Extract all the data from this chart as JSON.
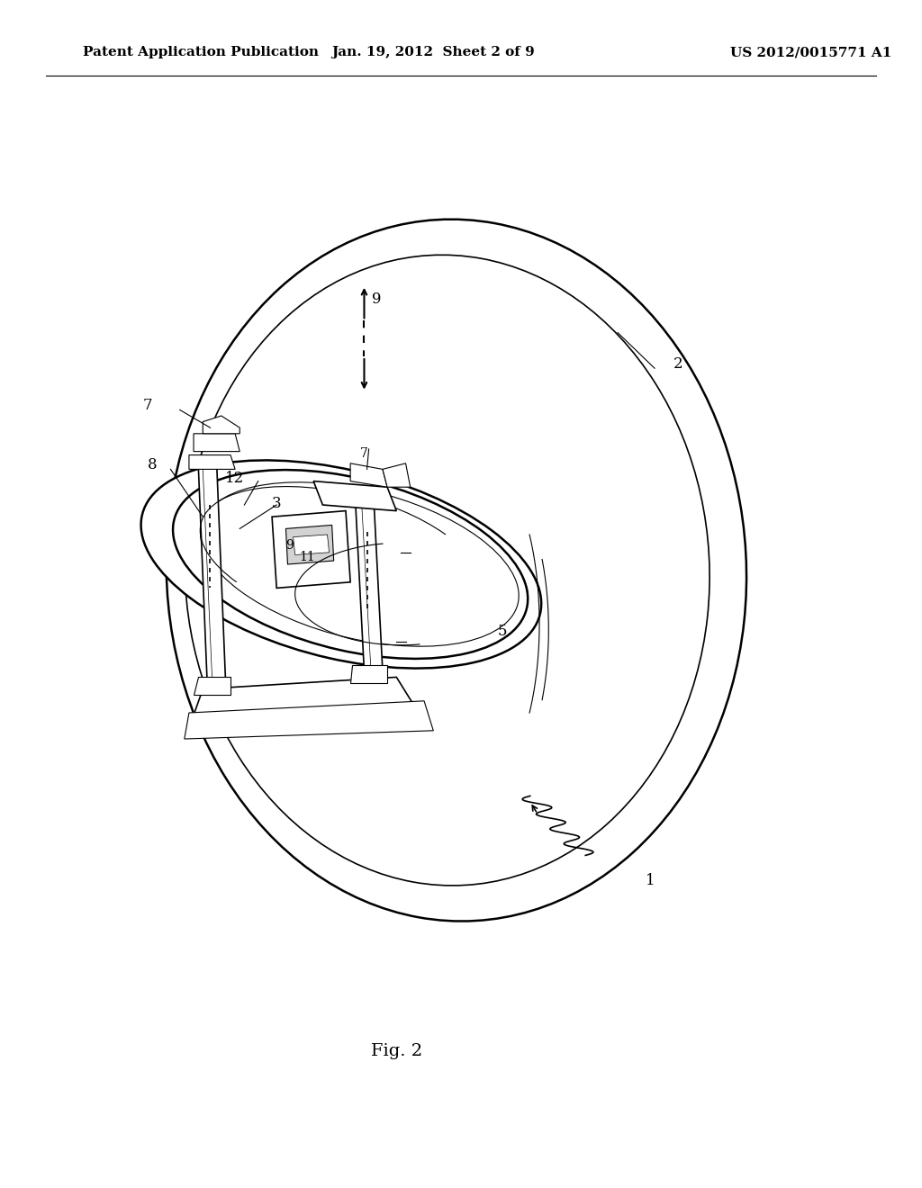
{
  "bg_color": "#ffffff",
  "header_left": "Patent Application Publication",
  "header_center": "Jan. 19, 2012  Sheet 2 of 9",
  "header_right": "US 2012/0015771 A1",
  "header_fontsize": 11,
  "fig_label": "Fig. 2",
  "fig_label_fontsize": 14,
  "label_fontsize": 12,
  "label_fontsize_small": 10
}
